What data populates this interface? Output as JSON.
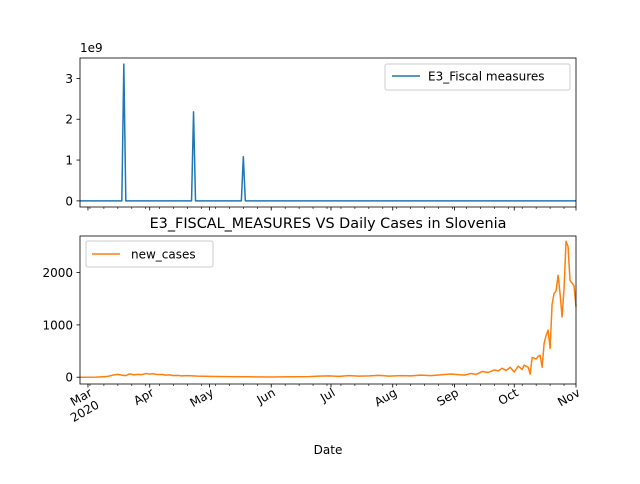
{
  "chart_data": [
    {
      "type": "line",
      "title": "",
      "xlabel": "",
      "ylabel": "",
      "y_offset_label": "1e9",
      "ylim": [
        -150000000,
        3500000000
      ],
      "yticks": [
        0,
        1,
        2,
        3
      ],
      "legend": {
        "position": "top-right",
        "entries": [
          "E3_Fiscal measures"
        ]
      },
      "series": [
        {
          "name": "E3_Fiscal measures",
          "color": "#1f77b4",
          "baseline": 0,
          "spikes": [
            {
              "x": "2020-03-19",
              "y": 3350000000
            },
            {
              "x": "2020-04-23",
              "y": 2180000000
            },
            {
              "x": "2020-05-18",
              "y": 1080000000
            }
          ]
        }
      ]
    },
    {
      "type": "line",
      "title": "E3_FISCAL_MEASURES VS Daily Cases in Slovenia",
      "xlabel": "Date",
      "ylabel": "",
      "ylim": [
        -130,
        2700
      ],
      "yticks": [
        "0",
        "1000",
        "2000"
      ],
      "legend": {
        "position": "top-left",
        "entries": [
          "new_cases"
        ]
      },
      "x_tick_labels": [
        "Mar\n2020",
        "Apr",
        "May",
        "Jun",
        "Jul",
        "Aug",
        "Sep",
        "Oct",
        "Nov"
      ],
      "series": [
        {
          "name": "new_cases",
          "color": "#ff7f0e",
          "x": [
            "2020-02-26",
            "2020-03-05",
            "2020-03-10",
            "2020-03-12",
            "2020-03-14",
            "2020-03-16",
            "2020-03-18",
            "2020-03-20",
            "2020-03-22",
            "2020-03-24",
            "2020-03-26",
            "2020-03-28",
            "2020-03-30",
            "2020-04-01",
            "2020-04-03",
            "2020-04-05",
            "2020-04-07",
            "2020-04-09",
            "2020-04-11",
            "2020-04-13",
            "2020-04-15",
            "2020-04-17",
            "2020-04-20",
            "2020-04-25",
            "2020-05-01",
            "2020-05-10",
            "2020-05-20",
            "2020-06-01",
            "2020-06-10",
            "2020-06-20",
            "2020-06-25",
            "2020-06-30",
            "2020-07-05",
            "2020-07-10",
            "2020-07-15",
            "2020-07-20",
            "2020-07-25",
            "2020-07-30",
            "2020-08-05",
            "2020-08-10",
            "2020-08-15",
            "2020-08-20",
            "2020-08-25",
            "2020-08-30",
            "2020-09-03",
            "2020-09-06",
            "2020-09-09",
            "2020-09-12",
            "2020-09-15",
            "2020-09-18",
            "2020-09-21",
            "2020-09-23",
            "2020-09-25",
            "2020-09-27",
            "2020-09-29",
            "2020-10-01",
            "2020-10-03",
            "2020-10-05",
            "2020-10-06",
            "2020-10-08",
            "2020-10-09",
            "2020-10-10",
            "2020-10-12",
            "2020-10-13",
            "2020-10-14",
            "2020-10-15",
            "2020-10-16",
            "2020-10-17",
            "2020-10-18",
            "2020-10-19",
            "2020-10-20",
            "2020-10-21",
            "2020-10-22",
            "2020-10-23",
            "2020-10-24",
            "2020-10-25",
            "2020-10-26",
            "2020-10-27",
            "2020-10-28",
            "2020-10-29",
            "2020-10-30",
            "2020-10-31",
            "2020-11-01"
          ],
          "values": [
            0,
            2,
            10,
            25,
            45,
            55,
            40,
            30,
            65,
            45,
            55,
            50,
            70,
            60,
            65,
            50,
            55,
            40,
            45,
            30,
            35,
            25,
            30,
            20,
            15,
            10,
            8,
            5,
            8,
            10,
            20,
            25,
            15,
            30,
            20,
            25,
            35,
            20,
            30,
            25,
            40,
            30,
            45,
            60,
            50,
            40,
            70,
            55,
            110,
            90,
            140,
            120,
            170,
            130,
            190,
            100,
            210,
            150,
            230,
            190,
            60,
            380,
            350,
            400,
            420,
            190,
            650,
            800,
            900,
            550,
            1400,
            1600,
            1650,
            1950,
            1600,
            1150,
            1700,
            2600,
            2500,
            1850,
            1800,
            1750,
            1350
          ]
        }
      ]
    }
  ]
}
